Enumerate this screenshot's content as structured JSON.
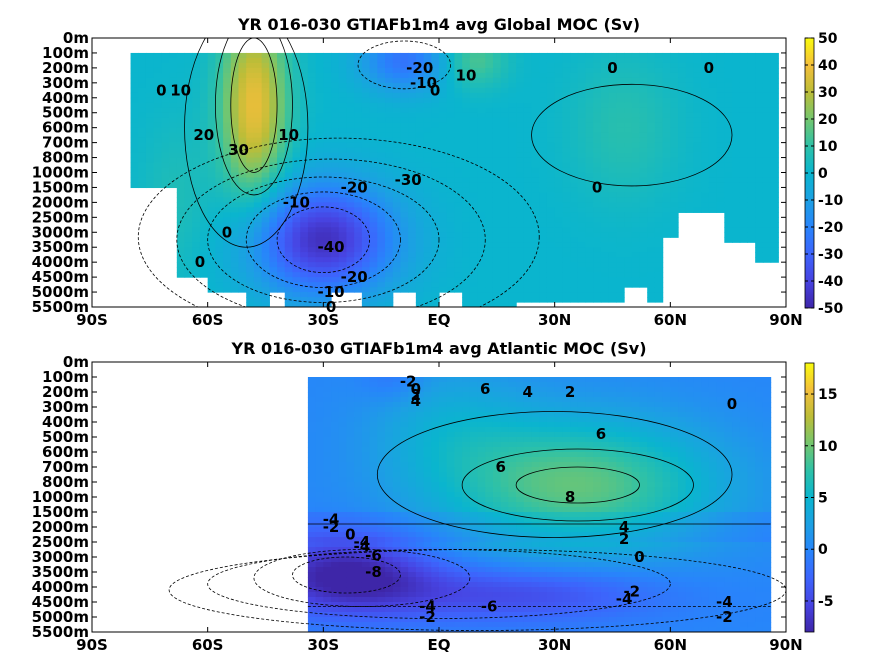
{
  "chart_data": [
    {
      "type": "heatmap",
      "title": "YR 016-030 GTIAFb1m4 avg  Global MOC (Sv)",
      "x_ticks": [
        "90S",
        "60S",
        "30S",
        "EQ",
        "30N",
        "60N",
        "90N"
      ],
      "x_range": [
        -90,
        90
      ],
      "y_ticks": [
        "0m",
        "100m",
        "200m",
        "300m",
        "400m",
        "500m",
        "600m",
        "700m",
        "800m",
        "1000m",
        "1500m",
        "2000m",
        "2500m",
        "3000m",
        "3500m",
        "4000m",
        "4500m",
        "5000m",
        "5500m"
      ],
      "colorbar": {
        "min": -50,
        "max": 50,
        "ticks": [
          "50",
          "40",
          "30",
          "20",
          "10",
          "0",
          "-10",
          "-20",
          "-30",
          "-40",
          "-50"
        ]
      },
      "contour_labels": [
        "0",
        "10",
        "20",
        "30",
        "10",
        "-20",
        "-10",
        "0",
        "10",
        "0",
        "0",
        "-10",
        "-20",
        "-30",
        "-40",
        "-20",
        "-10",
        "0",
        "0",
        "0",
        "0"
      ],
      "features": [
        {
          "name": "Southern Ocean positive cell",
          "lat": -48,
          "depth_m": 600,
          "value": 38
        },
        {
          "name": "Deep negative cell",
          "lat": -30,
          "depth_m": 3000,
          "value": -45
        },
        {
          "name": "Tropical shallow negative cell",
          "lat": -10,
          "depth_m": 150,
          "value": -25
        },
        {
          "name": "NH shallow positive cell",
          "lat": 8,
          "depth_m": 150,
          "value": 15
        }
      ]
    },
    {
      "type": "heatmap",
      "title": "YR 016-030 GTIAFb1m4 avg  Atlantic MOC (Sv)",
      "x_ticks": [
        "90S",
        "60S",
        "30S",
        "EQ",
        "30N",
        "60N",
        "90N"
      ],
      "x_range": [
        -90,
        90
      ],
      "y_ticks": [
        "0m",
        "100m",
        "200m",
        "300m",
        "400m",
        "500m",
        "600m",
        "700m",
        "800m",
        "1000m",
        "1500m",
        "2000m",
        "2500m",
        "3000m",
        "3500m",
        "4000m",
        "4500m",
        "5000m",
        "5500m"
      ],
      "colorbar": {
        "min": -8,
        "max": 18,
        "ticks": [
          "15",
          "10",
          "5",
          "0",
          "-5"
        ]
      },
      "contour_labels": [
        "-2",
        "0",
        "2",
        "4",
        "6",
        "4",
        "2",
        "0",
        "6",
        "6",
        "8",
        "4",
        "2",
        "0",
        "-4",
        "-2",
        "0",
        "-4",
        "-6",
        "-8",
        "-2",
        "-4",
        "-4",
        "-6",
        "-4",
        "-2",
        "-2",
        "-4"
      ],
      "features": [
        {
          "name": "Upper NADW cell",
          "lat": 35,
          "depth_m": 800,
          "value": 9
        },
        {
          "name": "AABW cell",
          "lat": -20,
          "depth_m": 3500,
          "value": -8
        }
      ]
    }
  ]
}
